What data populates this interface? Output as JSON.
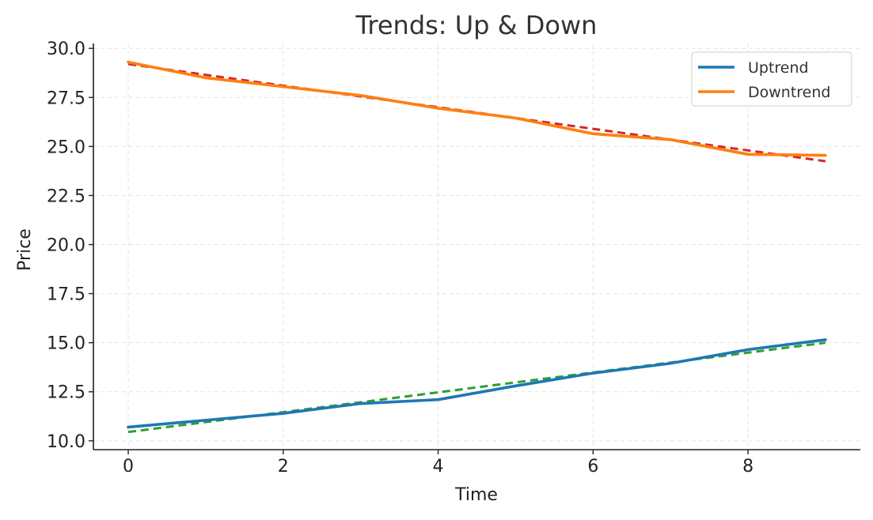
{
  "chart_data": {
    "type": "line",
    "title": "Trends: Up & Down",
    "xlabel": "Time",
    "ylabel": "Price",
    "x": [
      0,
      1,
      2,
      3,
      4,
      5,
      6,
      7,
      8,
      9
    ],
    "xlim": [
      -0.45,
      9.45
    ],
    "ylim": [
      9.55,
      30.25
    ],
    "xticks": [
      0,
      2,
      4,
      6,
      8
    ],
    "xtick_labels": [
      "0",
      "2",
      "4",
      "6",
      "8"
    ],
    "yticks": [
      10,
      12.5,
      15,
      17.5,
      20,
      22.5,
      25,
      27.5,
      30
    ],
    "ytick_labels": [
      "10.0",
      "12.5",
      "15.0",
      "17.5",
      "20.0",
      "22.5",
      "25.0",
      "27.5",
      "30.0"
    ],
    "grid": true,
    "legend_position": "top-right",
    "series": [
      {
        "name": "Uptrend",
        "values": [
          10.7,
          11.05,
          11.4,
          11.9,
          12.1,
          12.8,
          13.45,
          13.95,
          14.65,
          15.15
        ],
        "color": "#1f77b4",
        "style": "solid"
      },
      {
        "name": "Downtrend",
        "values": [
          29.3,
          28.5,
          28.05,
          27.6,
          26.95,
          26.45,
          25.65,
          25.35,
          24.6,
          24.55
        ],
        "color": "#ff7f0e",
        "style": "solid"
      }
    ],
    "trend_lines": [
      {
        "start": [
          0,
          10.45
        ],
        "end": [
          9,
          15.0
        ],
        "color": "#2ca02c",
        "style": "dashed"
      },
      {
        "start": [
          0,
          29.2
        ],
        "end": [
          9,
          24.25
        ],
        "color": "#d62728",
        "style": "dashed"
      }
    ]
  }
}
